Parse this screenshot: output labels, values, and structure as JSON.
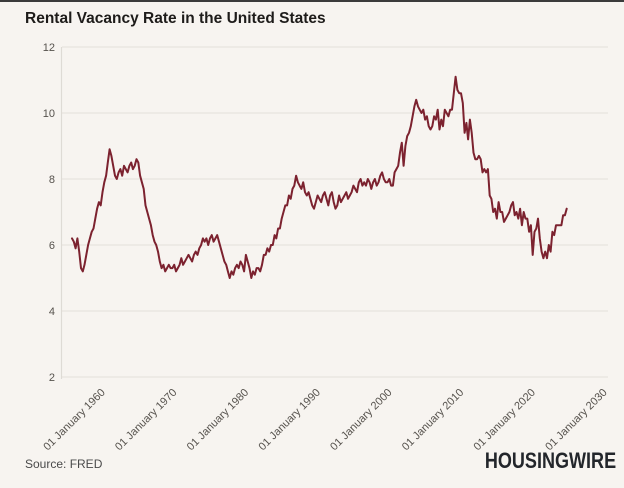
{
  "header": {
    "title": "Rental Vacancy Rate in the United States"
  },
  "footer": {
    "source": "Source: FRED",
    "brand": "HOUSINGWIRE"
  },
  "colors": {
    "background": "#F7F4F0",
    "line": "#7C222F",
    "grid": "#E7E4DE",
    "axis": "#DEDBD5",
    "tick_text": "#56524d",
    "title_text": "#1e1c1a",
    "source_text": "#4a4a4a",
    "brand_text": "#23262b",
    "top_border": "#3b3b3b"
  },
  "chart_data": {
    "type": "line",
    "title": "Rental Vacancy Rate in the United States",
    "source": "Source: FRED",
    "xlabel": "",
    "ylabel": "",
    "ylim": [
      2,
      12
    ],
    "grid": true,
    "legend": false,
    "y_ticks": [
      2,
      4,
      6,
      8,
      10,
      12
    ],
    "x_ticks": [
      {
        "year": 1960,
        "label": "01 January 1960"
      },
      {
        "year": 1970,
        "label": "01 January 1970"
      },
      {
        "year": 1980,
        "label": "01 January 1980"
      },
      {
        "year": 1990,
        "label": "01 January 1990"
      },
      {
        "year": 2000,
        "label": "01 January 2000"
      },
      {
        "year": 2010,
        "label": "01 January 2010"
      },
      {
        "year": 2020,
        "label": "01 January 2020"
      },
      {
        "year": 2030,
        "label": "01 January 2030"
      }
    ],
    "series": [
      {
        "name": "Rental Vacancy Rate (%)",
        "start_year": 1956,
        "frequency": "quarterly",
        "values": [
          6.2,
          6.1,
          5.9,
          6.2,
          5.8,
          5.3,
          5.2,
          5.4,
          5.7,
          6.0,
          6.2,
          6.4,
          6.5,
          6.8,
          7.1,
          7.3,
          7.2,
          7.6,
          7.9,
          8.1,
          8.5,
          8.9,
          8.7,
          8.4,
          8.1,
          8.0,
          8.2,
          8.3,
          8.1,
          8.4,
          8.3,
          8.2,
          8.4,
          8.5,
          8.3,
          8.4,
          8.6,
          8.5,
          8.1,
          7.9,
          7.7,
          7.2,
          7.0,
          6.8,
          6.6,
          6.3,
          6.1,
          6.0,
          5.8,
          5.5,
          5.3,
          5.4,
          5.2,
          5.3,
          5.4,
          5.3,
          5.3,
          5.4,
          5.2,
          5.3,
          5.4,
          5.6,
          5.4,
          5.5,
          5.6,
          5.7,
          5.6,
          5.5,
          5.7,
          5.8,
          5.7,
          5.9,
          6.0,
          6.2,
          6.1,
          6.2,
          6.0,
          6.2,
          6.3,
          6.1,
          6.2,
          6.3,
          6.1,
          5.9,
          5.7,
          5.5,
          5.4,
          5.2,
          5.0,
          5.2,
          5.1,
          5.3,
          5.4,
          5.3,
          5.5,
          5.4,
          5.2,
          5.7,
          5.5,
          5.3,
          5.0,
          5.2,
          5.1,
          5.3,
          5.3,
          5.2,
          5.4,
          5.7,
          5.7,
          5.9,
          5.8,
          6.0,
          6.0,
          6.3,
          6.2,
          6.5,
          6.5,
          6.8,
          7.0,
          7.2,
          7.2,
          7.5,
          7.4,
          7.7,
          7.8,
          8.1,
          7.9,
          7.8,
          7.7,
          7.9,
          7.6,
          7.5,
          7.6,
          7.4,
          7.2,
          7.1,
          7.3,
          7.5,
          7.4,
          7.3,
          7.5,
          7.6,
          7.4,
          7.2,
          7.5,
          7.6,
          7.3,
          7.1,
          7.2,
          7.5,
          7.3,
          7.4,
          7.5,
          7.6,
          7.4,
          7.5,
          7.6,
          7.8,
          7.7,
          7.6,
          7.9,
          8.0,
          7.8,
          7.9,
          7.8,
          8.0,
          7.9,
          7.7,
          7.9,
          8.0,
          7.8,
          7.9,
          8.1,
          8.2,
          8.0,
          7.9,
          7.9,
          8.0,
          7.8,
          7.8,
          8.2,
          8.3,
          8.4,
          8.8,
          9.1,
          8.4,
          9.0,
          9.3,
          9.4,
          9.6,
          9.9,
          10.2,
          10.4,
          10.2,
          10.1,
          10.0,
          10.1,
          9.8,
          9.9,
          9.6,
          9.5,
          9.6,
          9.9,
          9.8,
          10.1,
          9.5,
          9.8,
          9.6,
          10.1,
          10.0,
          9.9,
          10.1,
          10.1,
          10.6,
          11.1,
          10.7,
          10.6,
          10.6,
          10.3,
          9.4,
          9.7,
          9.2,
          9.8,
          9.4,
          8.8,
          8.6,
          8.6,
          8.7,
          8.6,
          8.2,
          8.3,
          8.2,
          8.3,
          7.5,
          7.4,
          7.0,
          7.1,
          6.8,
          7.3,
          7.0,
          7.0,
          6.7,
          6.8,
          6.9,
          7.0,
          7.2,
          7.3,
          6.9,
          7.0,
          6.8,
          7.1,
          6.6,
          7.0,
          6.8,
          6.8,
          6.4,
          6.6,
          5.7,
          6.4,
          6.5,
          6.8,
          6.2,
          5.8,
          5.6,
          5.8,
          5.6,
          6.0,
          5.8,
          6.4,
          6.3,
          6.6,
          6.6,
          6.6,
          6.6,
          6.9,
          6.9,
          7.1
        ]
      }
    ]
  }
}
